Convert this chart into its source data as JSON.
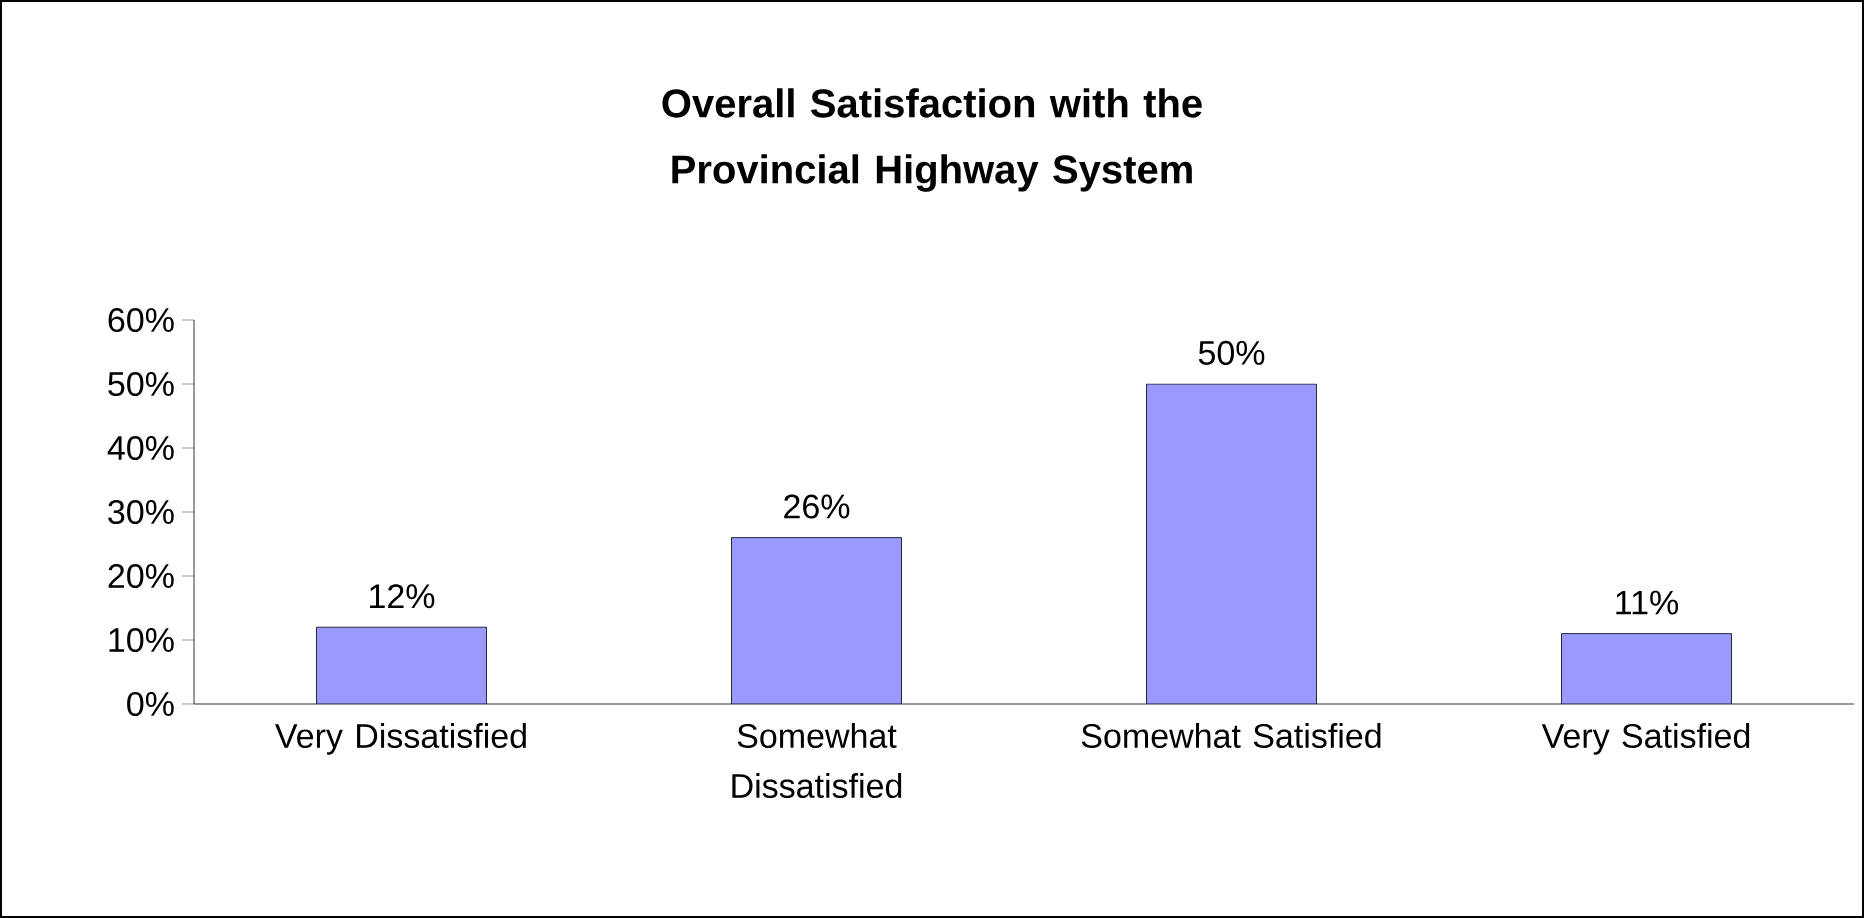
{
  "chart_data": {
    "type": "bar",
    "title": "Overall Satisfaction with the Provincial Highway System",
    "categories": [
      "Very Dissatisfied",
      "Somewhat Dissatisfied",
      "Somewhat Satisfied",
      "Very Satisfied"
    ],
    "values": [
      12,
      26,
      50,
      11
    ],
    "value_labels": [
      "12%",
      "26%",
      "50%",
      "11%"
    ],
    "color": "#9999ff",
    "ylim": [
      0,
      60
    ],
    "yticks": [
      {
        "value": 0,
        "label": "0%"
      },
      {
        "value": 10,
        "label": "10%"
      },
      {
        "value": 20,
        "label": "20%"
      },
      {
        "value": 30,
        "label": "30%"
      },
      {
        "value": 40,
        "label": "40%"
      },
      {
        "value": 50,
        "label": "50%"
      },
      {
        "value": 60,
        "label": "60%"
      }
    ]
  }
}
